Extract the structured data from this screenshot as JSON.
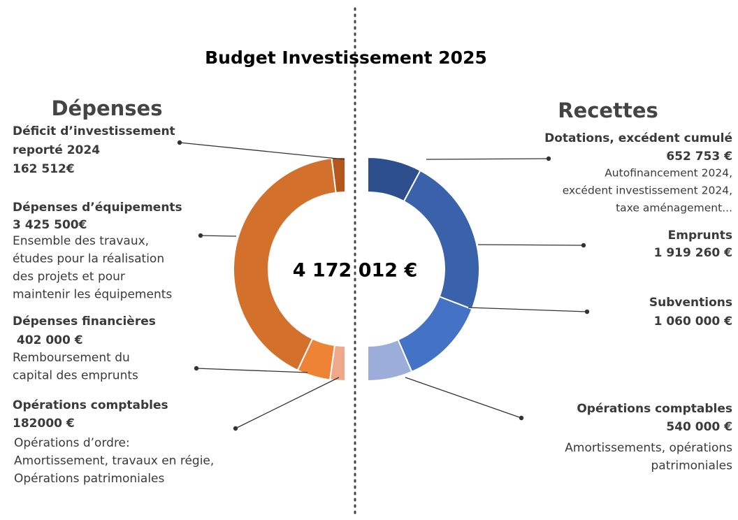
{
  "chart_data": {
    "type": "donut",
    "title": "Budget Investissement 2025",
    "total": {
      "value": 4172012,
      "label": "4 172 012 €"
    },
    "series": [
      {
        "name": "Dépenses",
        "categories": [
          [
            "Déficit d’investissement",
            "reporté 2024"
          ],
          [
            "Dépenses d’équipements"
          ],
          [
            "Dépenses financières"
          ],
          [
            "Opérations comptables"
          ]
        ],
        "values": [
          162512,
          3425500,
          402000,
          182000
        ],
        "value_labels": [
          "162 512€",
          "3 425 500€",
          " 402 000 €",
          "182000 €"
        ],
        "descriptions": [
          [],
          [
            "Ensemble des travaux,",
            "études pour la réalisation",
            "des projets et pour",
            "maintenir les équipements"
          ],
          [
            "Remboursement du",
            "capital des emprunts"
          ],
          [
            "Opérations d’ordre:",
            "Amortissement, travaux en régie,",
            "Opérations patrimoniales"
          ]
        ],
        "colors": [
          "#b5561c",
          "#d2702c",
          "#ee8235",
          "#f0a88a"
        ]
      },
      {
        "name": "Recettes",
        "categories": [
          [
            "Dotations, excédent cumulé"
          ],
          [
            "Emprunts"
          ],
          [
            "Subventions"
          ],
          [
            "Opérations comptables"
          ]
        ],
        "values": [
          652753,
          1919260,
          1060000,
          540000
        ],
        "value_labels": [
          "652 753 €",
          "1 919 260 €",
          "1 060 000 €",
          "540 000 €"
        ],
        "descriptions": [
          [
            "Autofinancement 2024,",
            "excédent investissement 2024,",
            "taxe aménagement..."
          ],
          [],
          [],
          [
            "Amortissements, opérations",
            "patrimoniales"
          ]
        ],
        "colors": [
          "#2d4f8e",
          "#3a62ab",
          "#4472c4",
          "#9dadd9"
        ]
      }
    ]
  }
}
